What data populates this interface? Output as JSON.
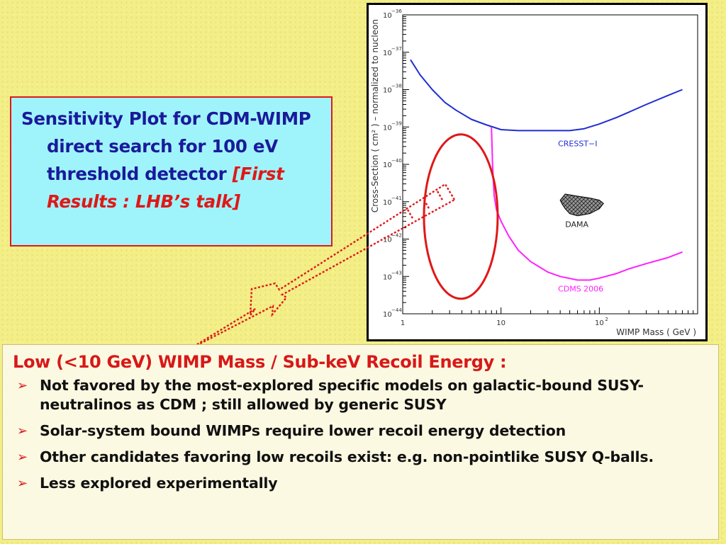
{
  "title_box": {
    "line1": "Sensitivity Plot for CDM-WIMP direct search for 100 eV threshold detector ",
    "ref": "[First Results : LHB’s talk]"
  },
  "chart_data": {
    "type": "line",
    "xlabel": "WIMP Mass ( GeV )",
    "ylabel": "Cross-Section ( cm² ) – normalized to nucleon",
    "x_scale": "log",
    "y_scale": "log",
    "xlim": [
      1,
      1000
    ],
    "ylim": [
      1e-44,
      1e-36
    ],
    "x_ticks": [
      {
        "value": 1,
        "label": "1"
      },
      {
        "value": 10,
        "label": "10"
      },
      {
        "value": 100,
        "label": "10",
        "exp": "2"
      }
    ],
    "y_ticks": [
      {
        "value": 1e-36,
        "label": "10",
        "exp": "−36"
      },
      {
        "value": 1e-37,
        "label": "10",
        "exp": "−37"
      },
      {
        "value": 1e-38,
        "label": "10",
        "exp": "−38"
      },
      {
        "value": 1e-39,
        "label": "10",
        "exp": "−39"
      },
      {
        "value": 1e-40,
        "label": "10",
        "exp": "−40"
      },
      {
        "value": 1e-41,
        "label": "10",
        "exp": "−41"
      },
      {
        "value": 1e-42,
        "label": "10",
        "exp": "−42"
      },
      {
        "value": 1e-43,
        "label": "10",
        "exp": "−43"
      },
      {
        "value": 1e-44,
        "label": "10",
        "exp": "−44"
      }
    ],
    "series": [
      {
        "name": "CRESST−I",
        "color": "#1f2fd0",
        "x": [
          1.2,
          1.5,
          2,
          2.7,
          3.5,
          5,
          7,
          10,
          15,
          20,
          30,
          50,
          70,
          100,
          150,
          200,
          300,
          500,
          700
        ],
        "y": [
          6.3e-38,
          2.5e-38,
          1e-38,
          4.5e-39,
          2.8e-39,
          1.6e-39,
          1.15e-39,
          8.5e-40,
          8e-40,
          8e-40,
          8e-40,
          8e-40,
          9e-40,
          1.2e-39,
          1.8e-39,
          2.5e-39,
          4e-39,
          7e-39,
          1e-38
        ]
      },
      {
        "name": "CDMS 2006",
        "color": "#ff20ff",
        "x": [
          8,
          8.2,
          8.5,
          9,
          10,
          12,
          15,
          20,
          30,
          40,
          60,
          80,
          100,
          150,
          200,
          300,
          500,
          700
        ],
        "y": [
          1e-39,
          1e-40,
          1.5e-41,
          6e-42,
          3e-42,
          1.2e-42,
          5e-43,
          2.5e-43,
          1.3e-43,
          1e-43,
          8e-44,
          8e-44,
          9e-44,
          1.2e-43,
          1.6e-43,
          2.2e-43,
          3.2e-43,
          4.5e-43
        ]
      }
    ],
    "regions": [
      {
        "name": "DAMA",
        "color": "#303030",
        "x": [
          40,
          45,
          60,
          80,
          100,
          110,
          100,
          80,
          60,
          50,
          45,
          42,
          40
        ],
        "y": [
          1.1e-41,
          1.6e-41,
          1.4e-41,
          1.25e-41,
          1.1e-41,
          9e-42,
          6.5e-42,
          4.8e-42,
          4.2e-42,
          4.8e-42,
          6.5e-42,
          8.5e-42,
          1.1e-41
        ]
      }
    ]
  },
  "bottom_box": {
    "heading": "Low (<10 GeV) WIMP Mass / Sub-keV Recoil Energy :",
    "bullet_glyph": "➢",
    "bullets": [
      "Not favored by the most-explored specific models on galactic-bound SUSY-neutralinos as CDM ; still allowed by generic SUSY",
      "Solar-system bound WIMPs require lower recoil energy detection",
      "Other candidates favoring low recoils exist: e.g. non-pointlike SUSY Q-balls.",
      "Less explored experimentally"
    ]
  },
  "colors": {
    "background": "#f3ee86",
    "title_box_fill": "#9ff4fb",
    "accent_red": "#e01818",
    "title_text": "#1a1a9a"
  }
}
